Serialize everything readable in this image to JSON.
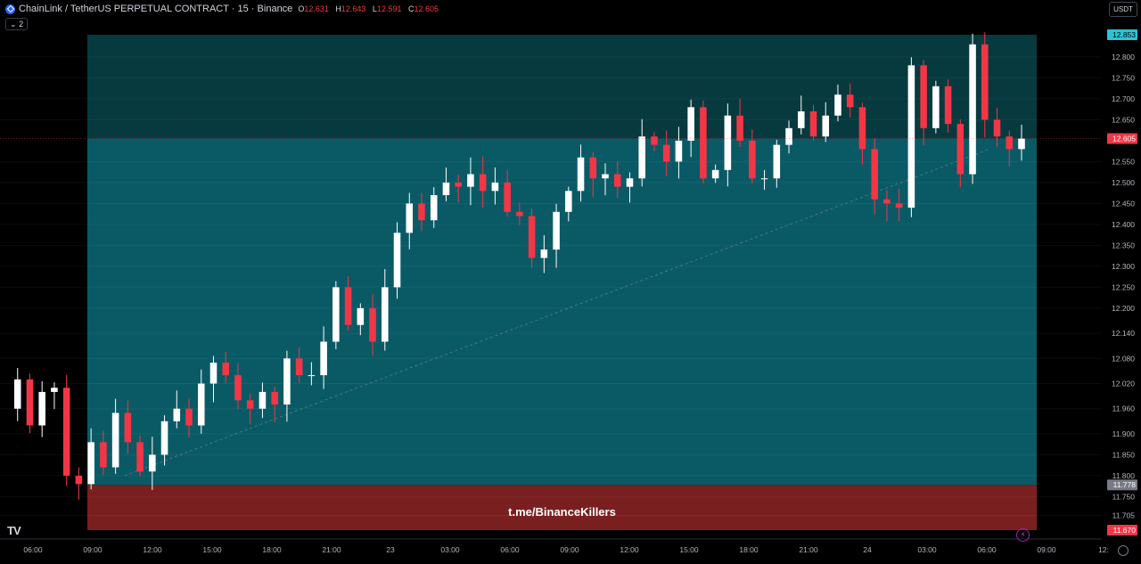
{
  "header": {
    "title": "ChainLink / TetherUS PERPETUAL CONTRACT · 15 · Binance",
    "ohlc": [
      {
        "k": "O",
        "v": "12.631"
      },
      {
        "k": "H",
        "v": "12.643"
      },
      {
        "k": "L",
        "v": "12.591"
      },
      {
        "k": "C",
        "v": "12.605"
      }
    ],
    "indicators_count": "2",
    "currency": "USDT"
  },
  "watermark": "t.me/BinanceKillers",
  "colors": {
    "up": "#ffffff",
    "down": "#f23645",
    "profit_zone": "#0a5a66",
    "upper_zone": "#063a3f",
    "loss_zone": "#7a1f1f",
    "current_price_label": "#f23645",
    "top_label": "#26c6da",
    "entry_label": "#787b86"
  },
  "chart_data": {
    "type": "candlestick",
    "x_ticks": [
      "06:00",
      "09:00",
      "12:00",
      "15:00",
      "18:00",
      "21:00",
      "23",
      "03:00",
      "06:00",
      "09:00",
      "12:00",
      "15:00",
      "18:00",
      "21:00",
      "24",
      "03:00",
      "06:00",
      "09:00",
      "12:"
    ],
    "y_ticks": [
      12.8,
      12.75,
      12.7,
      12.65,
      12.55,
      12.5,
      12.45,
      12.4,
      12.35,
      12.3,
      12.25,
      12.2,
      12.14,
      12.08,
      12.02,
      11.96,
      11.9,
      11.85,
      11.8,
      11.75,
      11.705
    ],
    "y_tick_labels": [
      "12.800",
      "12.750",
      "12.700",
      "12.650",
      "12.550",
      "12.500",
      "12.450",
      "12.400",
      "12.350",
      "12.300",
      "12.250",
      "12.200",
      "12.140",
      "12.080",
      "12.020",
      "11.960",
      "11.900",
      "11.850",
      "11.800",
      "11.750",
      "11.705"
    ],
    "price_labels": [
      {
        "name": "take-profit",
        "value": 12.853,
        "label": "12.853"
      },
      {
        "name": "current-price",
        "value": 12.605,
        "label": "12.605"
      },
      {
        "name": "entry",
        "value": 11.778,
        "label": "11.778"
      },
      {
        "name": "stop-loss",
        "value": 11.67,
        "label": "11.670"
      }
    ],
    "position": {
      "entry": 11.778,
      "stop": 11.67,
      "target": 12.853,
      "current": 12.605
    },
    "series_path": [
      11.96,
      12.03,
      11.92,
      12.0,
      12.01,
      11.8,
      11.78,
      11.88,
      11.82,
      11.95,
      11.88,
      11.81,
      11.85,
      11.93,
      11.96,
      11.92,
      12.02,
      12.07,
      12.04,
      11.98,
      11.96,
      12.0,
      11.97,
      12.08,
      12.04,
      12.04,
      12.12,
      12.25,
      12.16,
      12.2,
      12.12,
      12.25,
      12.38,
      12.45,
      12.41,
      12.47,
      12.5,
      12.49,
      12.52,
      12.48,
      12.5,
      12.43,
      12.42,
      12.32,
      12.34,
      12.43,
      12.48,
      12.56,
      12.51,
      12.52,
      12.49,
      12.51,
      12.61,
      12.59,
      12.55,
      12.6,
      12.68,
      12.51,
      12.53,
      12.66,
      12.6,
      12.51,
      12.51,
      12.59,
      12.63,
      12.67,
      12.61,
      12.66,
      12.71,
      12.68,
      12.58,
      12.46,
      12.45,
      12.44,
      12.78,
      12.63,
      12.73,
      12.64,
      12.52,
      12.83,
      12.65,
      12.61,
      12.58,
      12.605
    ],
    "ylim": [
      11.67,
      12.853
    ]
  }
}
